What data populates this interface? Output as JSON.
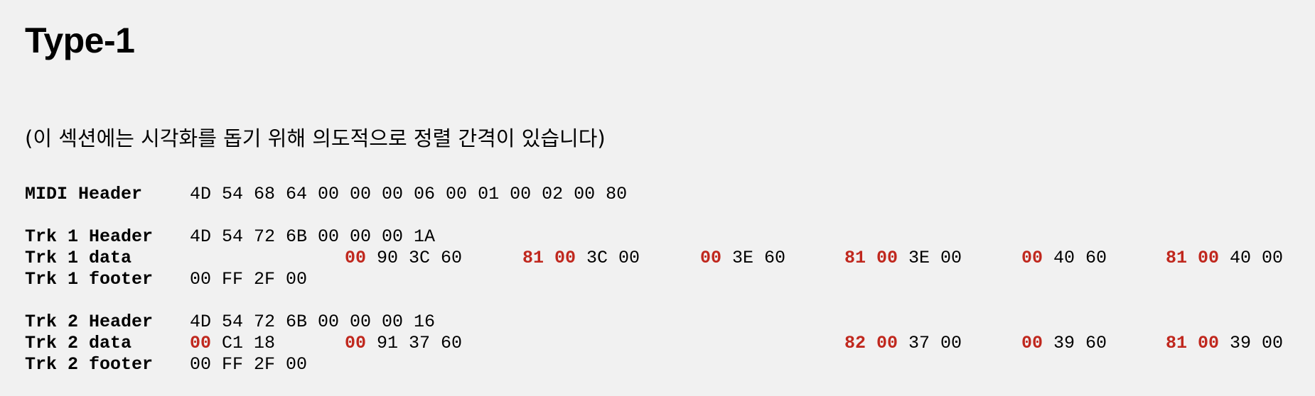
{
  "title": "Type-1",
  "note": "(이 섹션에는 시각화를 돕기 위해 의도적으로 정렬 간격이 있습니다)",
  "midi_header": {
    "label": "MIDI Header",
    "bytes": "4D 54 68 64 00 00 00 06 00 01 00 02 00 80"
  },
  "trk1": {
    "header_label": "Trk 1 Header",
    "header_bytes": "4D 54 72 6B 00 00 00 1A",
    "data_label": "Trk 1 data",
    "data_events": [
      {
        "delta": "00",
        "bytes": "90 3C 60"
      },
      {
        "delta": "81 00",
        "bytes": "3C 00"
      },
      {
        "delta": "00",
        "bytes": "3E 60"
      },
      {
        "delta": "81 00",
        "bytes": "3E 00"
      },
      {
        "delta": "00",
        "bytes": "40 60"
      },
      {
        "delta": "81 00",
        "bytes": "40 00"
      }
    ],
    "footer_label": "Trk 1 footer",
    "footer_bytes": "00 FF 2F 00"
  },
  "trk2": {
    "header_label": "Trk 2 Header",
    "header_bytes": "4D 54 72 6B 00 00 00 16",
    "data_label": "Trk 2 data",
    "data_events": [
      {
        "delta": "00",
        "bytes": "C1 18"
      },
      {
        "delta": "00",
        "bytes": "91 37 60"
      },
      {
        "delta": "82 00",
        "bytes": "37 00"
      },
      {
        "delta": "00",
        "bytes": "39 60"
      },
      {
        "delta": "81 00",
        "bytes": "39 00"
      }
    ],
    "footer_label": "Trk 2 footer",
    "footer_bytes": "00 FF 2F 00"
  }
}
